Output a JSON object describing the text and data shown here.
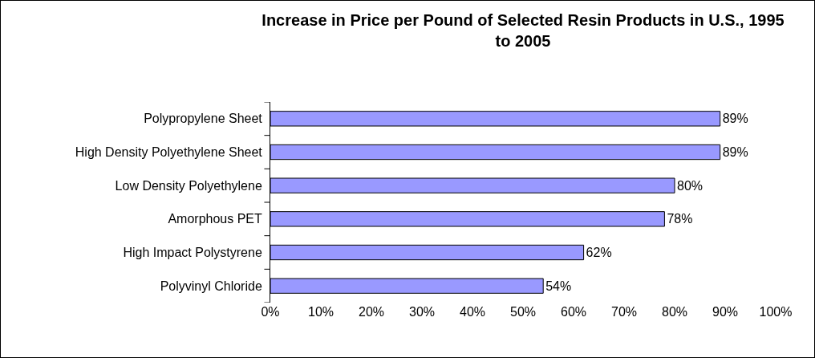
{
  "chart_data": {
    "type": "bar",
    "orientation": "horizontal",
    "title": "Increase in Price per Pound of Selected Resin Products in U.S., 1995 to 2005",
    "categories": [
      "Polypropylene Sheet",
      "High Density Polyethylene Sheet",
      "Low Density Polyethylene",
      "Amorphous PET",
      "High Impact Polystyrene",
      "Polyvinyl Chloride"
    ],
    "values": [
      89,
      89,
      80,
      78,
      62,
      54
    ],
    "value_labels": [
      "89%",
      "89%",
      "80%",
      "78%",
      "62%",
      "54%"
    ],
    "color": "#9999ff",
    "xlim": [
      0,
      100
    ],
    "xticks": [
      {
        "value": 0,
        "label": "0%"
      },
      {
        "value": 10,
        "label": "10%"
      },
      {
        "value": 20,
        "label": "20%"
      },
      {
        "value": 30,
        "label": "30%"
      },
      {
        "value": 40,
        "label": "40%"
      },
      {
        "value": 50,
        "label": "50%"
      },
      {
        "value": 60,
        "label": "60%"
      },
      {
        "value": 70,
        "label": "70%"
      },
      {
        "value": 80,
        "label": "80%"
      },
      {
        "value": 90,
        "label": "90%"
      },
      {
        "value": 100,
        "label": "100%"
      }
    ],
    "grid": false
  }
}
